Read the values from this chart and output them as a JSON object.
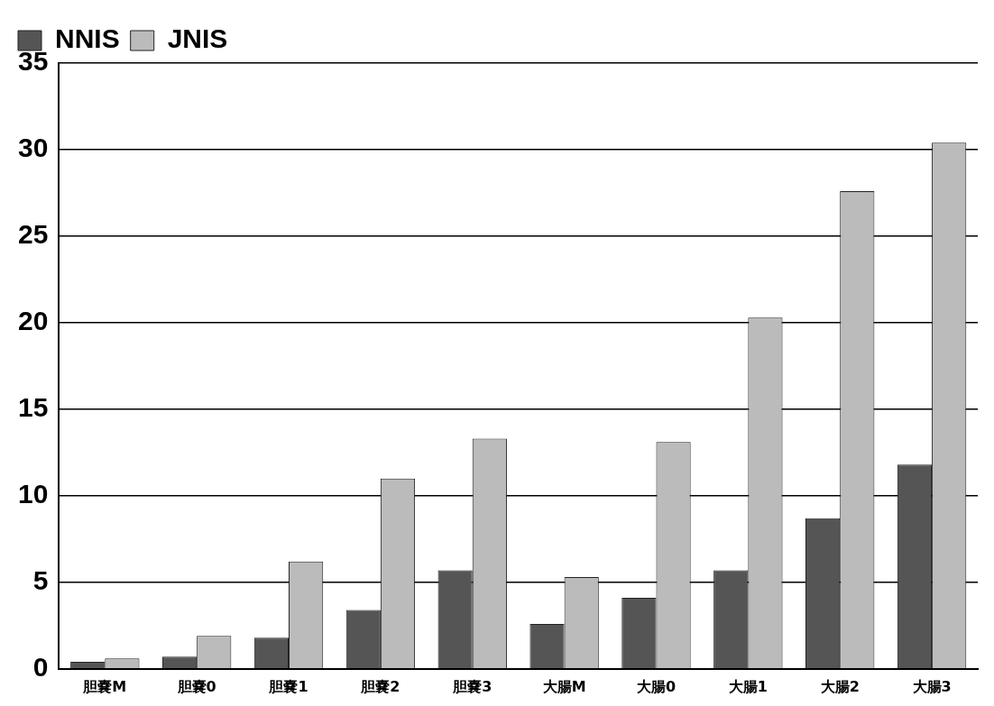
{
  "chart_data": {
    "type": "bar",
    "categories": [
      "胆嚢M",
      "胆嚢0",
      "胆嚢1",
      "胆嚢2",
      "胆嚢3",
      "大腸M",
      "大腸0",
      "大腸1",
      "大腸2",
      "大腸3"
    ],
    "series": [
      {
        "name": "NNIS",
        "color": "#555555",
        "values": [
          0.4,
          0.7,
          1.8,
          3.4,
          5.7,
          2.6,
          4.1,
          5.7,
          8.7,
          11.8
        ]
      },
      {
        "name": "JNIS",
        "color": "#bbbbbb",
        "values": [
          0.6,
          1.9,
          6.2,
          11.0,
          13.3,
          5.3,
          13.1,
          20.3,
          27.6,
          30.4
        ]
      }
    ],
    "ylim": [
      0,
      35
    ],
    "yticks": [
      0,
      5,
      10,
      15,
      20,
      25,
      30,
      35
    ],
    "grid": "y",
    "legend": "top left"
  }
}
